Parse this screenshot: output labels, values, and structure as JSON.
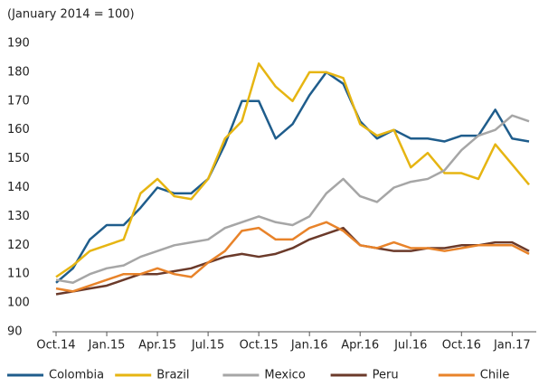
{
  "chart_data": {
    "type": "line",
    "subtitle": "(January 2014 = 100)",
    "x": [
      "Oct.14",
      null,
      null,
      "Jan.15",
      null,
      null,
      "Apr.15",
      null,
      null,
      "Jul.15",
      null,
      null,
      "Oct.15",
      null,
      null,
      "Jan.16",
      null,
      null,
      "Apr.16",
      null,
      null,
      "Jul.16",
      null,
      null,
      "Oct.16",
      null,
      null,
      "Jan.17",
      null
    ],
    "ylim": [
      90,
      190
    ],
    "yticks": [
      90,
      100,
      110,
      120,
      130,
      140,
      150,
      160,
      170,
      180,
      190
    ],
    "legend": "bottom",
    "series": [
      {
        "name": "Colombia",
        "color": "#1f5d8c",
        "values": [
          107,
          112,
          122,
          127,
          127,
          133,
          140,
          138,
          138,
          143,
          155,
          170,
          170,
          157,
          162,
          172,
          180,
          176,
          163,
          157,
          160,
          157,
          157,
          156,
          158,
          158,
          167,
          157,
          156
        ]
      },
      {
        "name": "Brazil",
        "color": "#e6b512",
        "values": [
          109,
          113,
          118,
          120,
          122,
          138,
          143,
          137,
          136,
          143,
          157,
          163,
          183,
          175,
          170,
          180,
          180,
          178,
          162,
          158,
          160,
          147,
          152,
          145,
          145,
          143,
          155,
          148,
          141
        ]
      },
      {
        "name": "Mexico",
        "color": "#a6a6a6",
        "values": [
          108,
          107,
          110,
          112,
          113,
          116,
          118,
          120,
          121,
          122,
          126,
          128,
          130,
          128,
          127,
          130,
          138,
          143,
          137,
          135,
          140,
          142,
          143,
          146,
          153,
          158,
          160,
          165,
          163
        ]
      },
      {
        "name": "Peru",
        "color": "#6b3a2a",
        "values": [
          103,
          104,
          105,
          106,
          108,
          110,
          110,
          111,
          112,
          114,
          116,
          117,
          116,
          117,
          119,
          122,
          124,
          126,
          120,
          119,
          118,
          118,
          119,
          119,
          120,
          120,
          121,
          121,
          118
        ]
      },
      {
        "name": "Chile",
        "color": "#e8832a",
        "values": [
          105,
          104,
          106,
          108,
          110,
          110,
          112,
          110,
          109,
          114,
          118,
          125,
          126,
          122,
          122,
          126,
          128,
          125,
          120,
          119,
          121,
          119,
          119,
          118,
          119,
          120,
          120,
          120,
          117
        ]
      }
    ]
  }
}
